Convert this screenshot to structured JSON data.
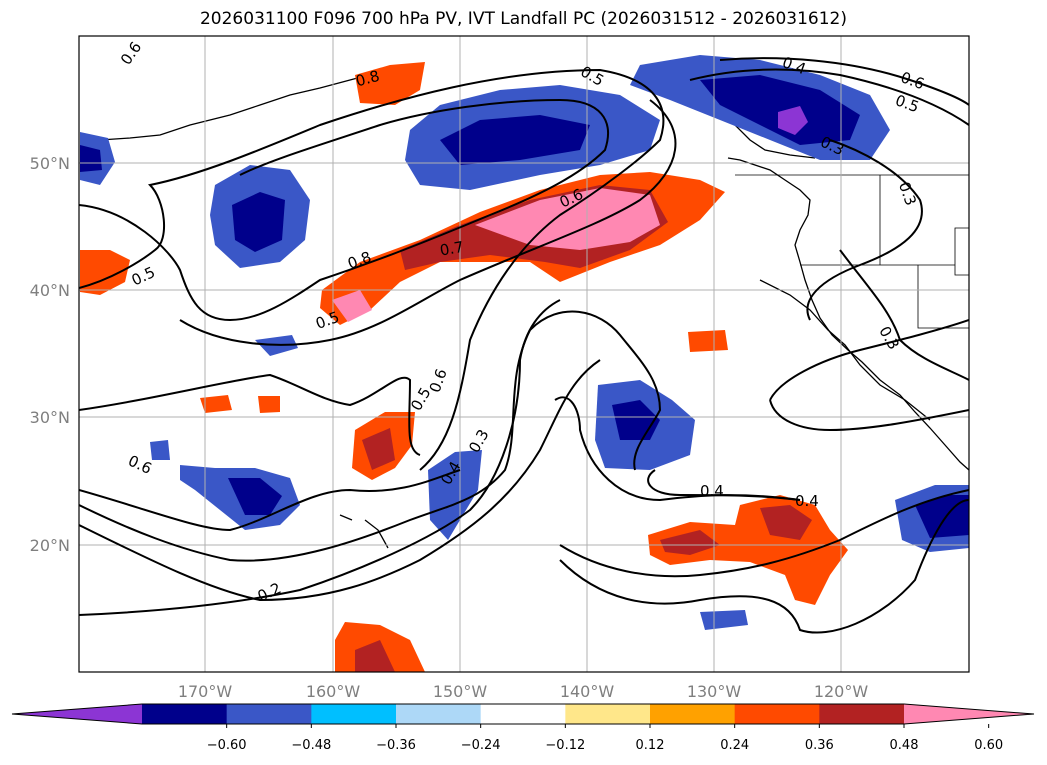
{
  "title": "2026031100 F096 700 hPa PV, IVT Landfall PC (2026031512 - 2026031612)",
  "axes": {
    "lon_labels": [
      "170°W",
      "160°W",
      "150°W",
      "140°W",
      "130°W",
      "120°W"
    ],
    "lat_labels": [
      "50°N",
      "40°N",
      "30°N",
      "20°N"
    ]
  },
  "contour_labels": [
    "0.6",
    "0.8",
    "0.5",
    "0.5",
    "0.4",
    "0.6",
    "0.5",
    "0.3",
    "0.5",
    "0.8",
    "0.7",
    "0.6",
    "0.6",
    "0.6",
    "0.3",
    "0.4",
    "0.5",
    "0.4",
    "0.4",
    "0.2",
    "0.3",
    "0.3"
  ],
  "colorbar": {
    "colors": [
      "#8c35d4",
      "#00008b",
      "#3a57c7",
      "#00bfff",
      "#add8f7",
      "#ffffff",
      "#ffe78a",
      "#ffa100",
      "#ff4a00",
      "#b22222",
      "#ff88b2"
    ],
    "tick_labels": [
      "−0.60",
      "−0.48",
      "−0.36",
      "−0.24",
      "−0.12",
      "0.12",
      "0.24",
      "0.36",
      "0.48",
      "0.60"
    ]
  }
}
